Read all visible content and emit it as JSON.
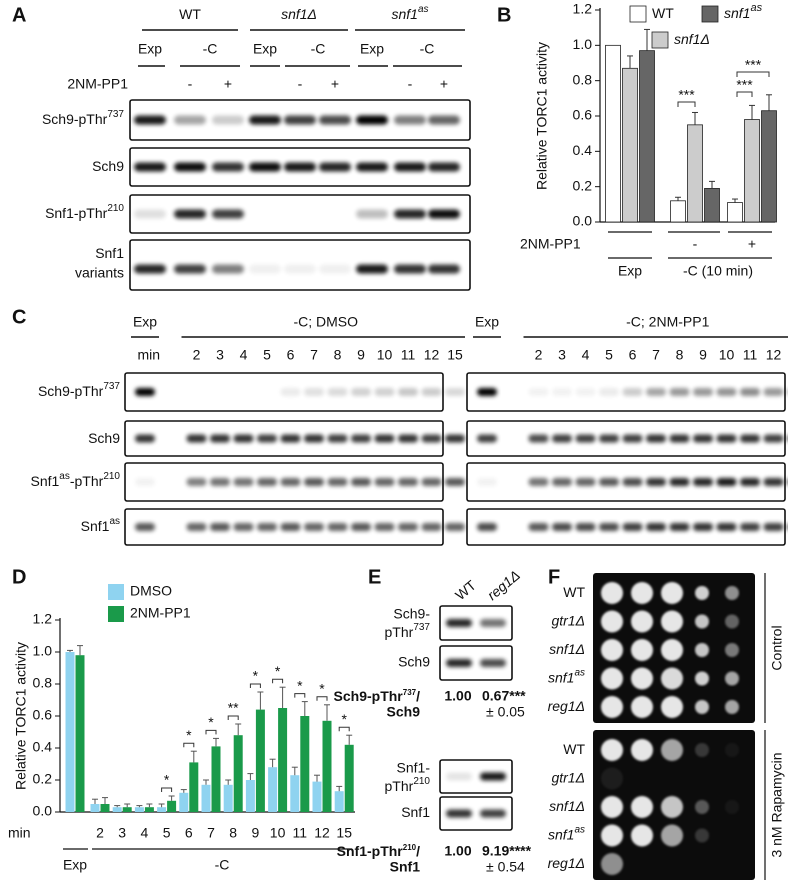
{
  "panel_labels": [
    "A",
    "B",
    "C",
    "D",
    "E",
    "F"
  ],
  "panel_a": {
    "strains": [
      {
        "text": "WT",
        "sup": ""
      },
      {
        "text": "snf1Δ",
        "sup": ""
      },
      {
        "text": "snf1",
        "sup": "as"
      }
    ],
    "conditions": [
      "Exp",
      "-C",
      "Exp",
      "-C",
      "Exp",
      "-C"
    ],
    "drug_label": "2NM-PP1",
    "drug": [
      "-",
      "+",
      "-",
      "+",
      "-",
      "+"
    ],
    "rows": [
      {
        "text": "Sch9-pThr",
        "sup": "737"
      },
      {
        "text": "Sch9",
        "sup": ""
      },
      {
        "text": "Snf1-pThr",
        "sup": "210"
      },
      {
        "text": "Snf1",
        "sup": ""
      }
    ],
    "row4_line2": "variants"
  },
  "chart_data": [
    {
      "type": "bar",
      "y_label": "Relative TORC1 activity",
      "categories": [
        null,
        "-",
        "+"
      ],
      "row_label": "2NM-PP1",
      "category_groups": [
        "Exp",
        "-C (10 min)"
      ],
      "series": [
        {
          "name": "WT",
          "color": "#ffffff",
          "values": [
            1.0,
            0.12,
            0.11
          ],
          "errors": [
            0.0,
            0.02,
            0.02
          ]
        },
        {
          "name": "snf1Δ",
          "color": "#cccccc",
          "values": [
            0.87,
            0.55,
            0.58
          ],
          "errors": [
            0.07,
            0.07,
            0.08
          ]
        },
        {
          "name": "snf1",
          "name_sup": "as",
          "color": "#666666",
          "values": [
            0.97,
            0.19,
            0.63
          ],
          "errors": [
            0.12,
            0.04,
            0.09
          ]
        }
      ],
      "significance": [
        "***",
        "***",
        "***"
      ],
      "ylim": [
        0,
        1.2
      ],
      "yticks": [
        {
          "value": 0,
          "label": "0.0"
        },
        0.2,
        0.4,
        0.6,
        0.8,
        {
          "value": 1,
          "label": "1.0"
        },
        1.2
      ]
    },
    {
      "type": "bar",
      "y_label": "Relative TORC1 activity",
      "x_label": "min",
      "categories": [
        null,
        "2",
        "3",
        "4",
        "5",
        "6",
        "7",
        "8",
        "9",
        "10",
        "11",
        "12",
        "15"
      ],
      "category_groups": [
        "Exp",
        "-C"
      ],
      "series": [
        {
          "name": "DMSO",
          "color": "#8fd3f0",
          "values": [
            1.0,
            0.05,
            0.03,
            0.03,
            0.03,
            0.12,
            0.17,
            0.17,
            0.2,
            0.28,
            0.23,
            0.19,
            0.13
          ],
          "errors": [
            0.01,
            0.03,
            0.01,
            0.01,
            0.02,
            0.02,
            0.03,
            0.03,
            0.04,
            0.05,
            0.05,
            0.04,
            0.03
          ]
        },
        {
          "name": "2NM-PP1",
          "color": "#1a9a4a",
          "values": [
            0.98,
            0.05,
            0.03,
            0.03,
            0.07,
            0.31,
            0.41,
            0.48,
            0.64,
            0.65,
            0.6,
            0.57,
            0.42
          ],
          "errors": [
            0.06,
            0.04,
            0.02,
            0.02,
            0.03,
            0.07,
            0.05,
            0.07,
            0.11,
            0.13,
            0.09,
            0.1,
            0.06
          ]
        }
      ],
      "significance": [
        null,
        null,
        null,
        null,
        "*",
        "*",
        "*",
        "**",
        "*",
        "*",
        "*",
        "*",
        "*"
      ],
      "ylim": [
        0,
        1.2
      ],
      "yticks": [
        {
          "value": 0,
          "label": "0.0"
        },
        0.2,
        0.4,
        0.6,
        0.8,
        {
          "value": 1,
          "label": "1.0"
        },
        1.2
      ]
    }
  ],
  "panel_c": {
    "left_header": [
      "Exp",
      "-C; DMSO"
    ],
    "right_header": [
      "Exp",
      "-C; 2NM-PP1"
    ],
    "min_label": "min",
    "minutes": [
      "2",
      "3",
      "4",
      "5",
      "6",
      "7",
      "8",
      "9",
      "10",
      "11",
      "12",
      "15"
    ],
    "rows": [
      {
        "text": "Sch9-pThr",
        "sup": "737"
      },
      {
        "text": "Sch9",
        "sup": ""
      },
      {
        "text": "Snf1",
        "sup": "as",
        "tail": "-pThr",
        "sup2": "210"
      },
      {
        "text": "Snf1",
        "sup": "as"
      }
    ]
  },
  "panel_e": {
    "lanes": [
      "WT",
      "reg1Δ"
    ],
    "rows": [
      {
        "text": "Sch9-",
        "text2": "pThr",
        "sup": "737"
      },
      {
        "text": "Sch9"
      },
      {
        "text": "Snf1-",
        "text2": "pThr",
        "sup": "210"
      },
      {
        "text": "Snf1"
      }
    ],
    "quant": [
      {
        "label_line1": "Sch9-pThr",
        "label_sup": "737",
        "label_slash": "/",
        "label_line2": "Sch9",
        "values": [
          "1.00",
          "0.67***"
        ],
        "error": "± 0.05"
      },
      {
        "label_line1": "Snf1-pThr",
        "label_sup": "210",
        "label_slash": "/",
        "label_line2": "Snf1",
        "values": [
          "1.00",
          "9.19****"
        ],
        "error": "± 0.54"
      }
    ]
  },
  "panel_f": {
    "strains": [
      {
        "text": "WT",
        "sup": ""
      },
      {
        "text": "gtr1Δ",
        "sup": ""
      },
      {
        "text": "snf1Δ",
        "sup": ""
      },
      {
        "text": "snf1",
        "sup": "as"
      },
      {
        "text": "reg1Δ",
        "sup": ""
      }
    ],
    "conditions": [
      "Control",
      "3 nM Rapamycin"
    ]
  }
}
